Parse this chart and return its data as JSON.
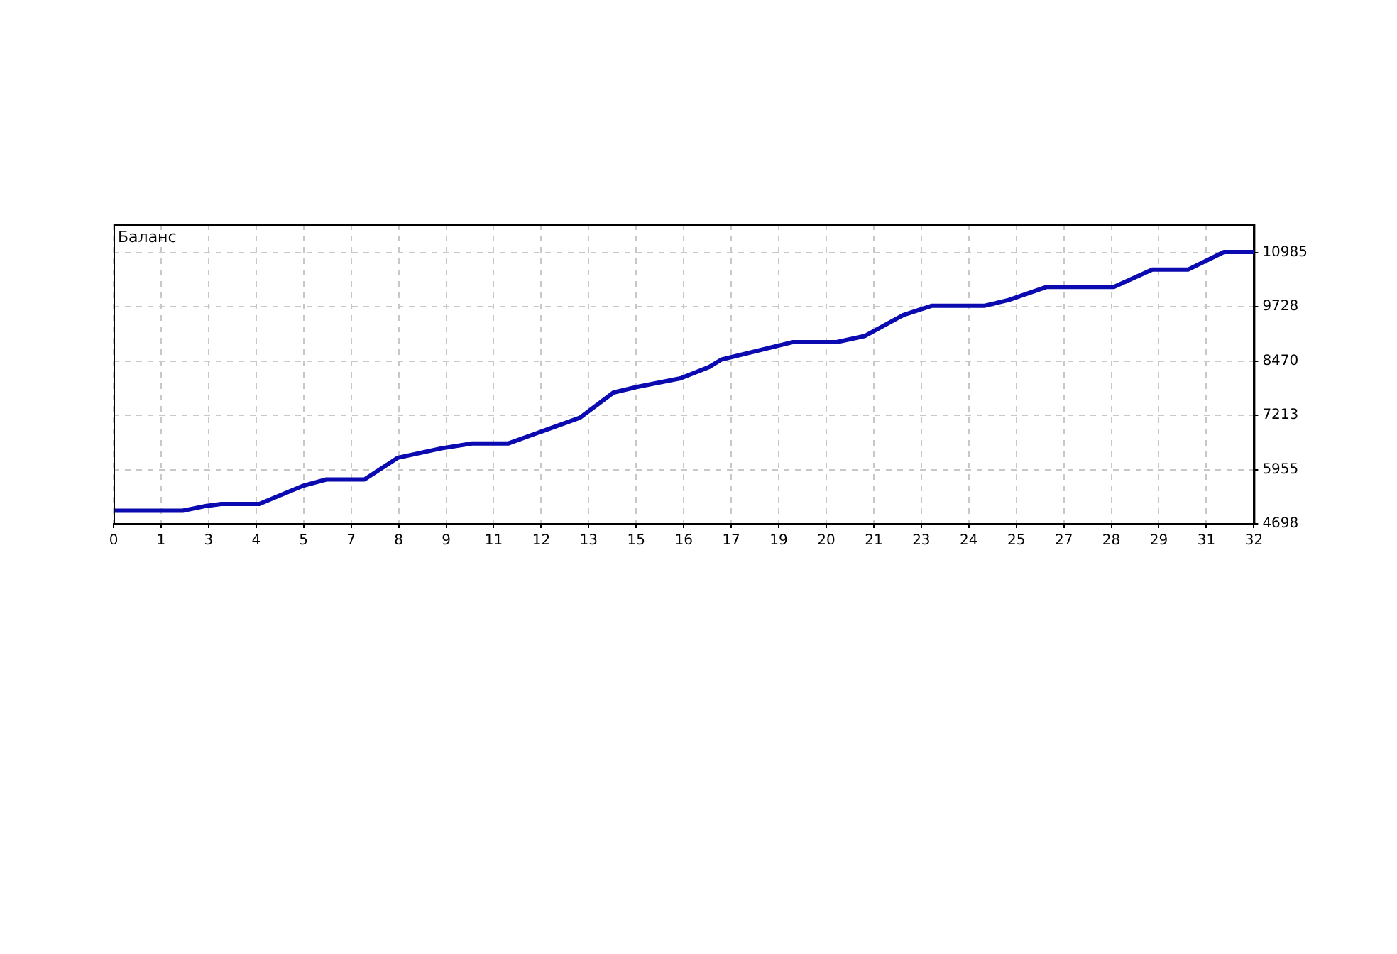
{
  "chart_data": {
    "type": "line",
    "title": "Баланс",
    "x": [
      0,
      1.94,
      2.61,
      3.02,
      4.09,
      5.3,
      5.97,
      7.04,
      7.98,
      9.2,
      10.06,
      11.07,
      11.88,
      13.09,
      14.03,
      14.7,
      15.91,
      16.71,
      17.06,
      19.07,
      20.29,
      21.09,
      22.16,
      22.97,
      24.45,
      25.12,
      26.19,
      28.07,
      29.15,
      30.15,
      31.16,
      32
    ],
    "series": [
      {
        "color": "#0a0ab0",
        "values": [
          5003,
          5003,
          5115,
          5158,
          5158,
          5575,
          5726,
          5726,
          6231,
          6448,
          6560,
          6560,
          6799,
          7160,
          7741,
          7873,
          8070,
          8332,
          8506,
          8910,
          8910,
          9054,
          9535,
          9754,
          9754,
          9885,
          10190,
          10190,
          10590,
          10590,
          10999,
          10999
        ]
      }
    ],
    "xlim": [
      0,
      32
    ],
    "xticks": [
      0,
      {
        "value": 1.333,
        "label": "1"
      },
      {
        "value": 2.667,
        "label": "3"
      },
      4,
      {
        "value": 5.333,
        "label": "5"
      },
      {
        "value": 6.667,
        "label": "7"
      },
      8,
      {
        "value": 9.333,
        "label": "9"
      },
      {
        "value": 10.667,
        "label": "11"
      },
      12,
      {
        "value": 13.333,
        "label": "13"
      },
      {
        "value": 14.667,
        "label": "15"
      },
      16,
      {
        "value": 17.333,
        "label": "17"
      },
      {
        "value": 18.667,
        "label": "19"
      },
      20,
      {
        "value": 21.333,
        "label": "21"
      },
      {
        "value": 22.667,
        "label": "23"
      },
      24,
      {
        "value": 25.333,
        "label": "25"
      },
      {
        "value": 26.667,
        "label": "27"
      },
      28,
      {
        "value": 29.333,
        "label": "29"
      },
      {
        "value": 30.667,
        "label": "31"
      },
      32
    ],
    "ylim": [
      4698,
      11640
    ],
    "yticks": [
      4698,
      5955,
      7213,
      8470,
      9728,
      10985
    ],
    "grid": true,
    "legend": false,
    "marker": "none",
    "line_style": "solid"
  }
}
